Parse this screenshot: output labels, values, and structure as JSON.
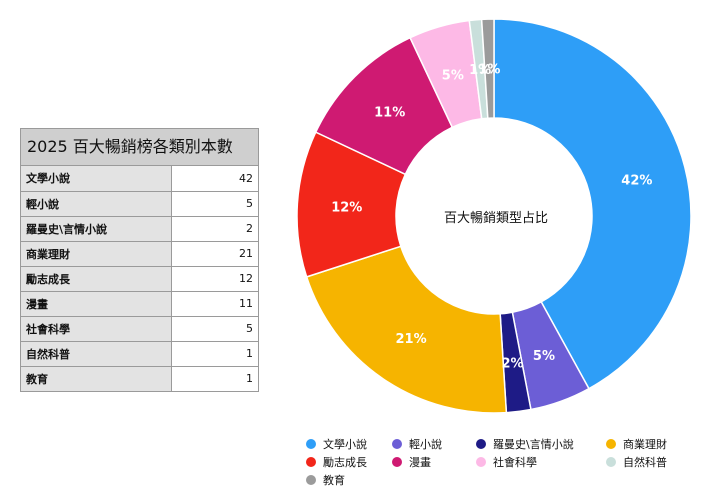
{
  "table": {
    "title": "2025 百大暢銷榜各類別本數",
    "rows": [
      {
        "category": "文學小說",
        "count": "42"
      },
      {
        "category": "輕小說",
        "count": "5"
      },
      {
        "category": "羅曼史\\言情小說",
        "count": "2"
      },
      {
        "category": "商業理財",
        "count": "21"
      },
      {
        "category": "勵志成長",
        "count": "12"
      },
      {
        "category": "漫畫",
        "count": "11"
      },
      {
        "category": "社會科學",
        "count": "5"
      },
      {
        "category": "自然科普",
        "count": "1"
      },
      {
        "category": "教育",
        "count": "1"
      }
    ]
  },
  "chart_data": {
    "type": "pie",
    "variant": "donut",
    "title": "百大暢銷類型占比",
    "categories": [
      "文學小說",
      "輕小說",
      "羅曼史\\言情小說",
      "商業理財",
      "勵志成長",
      "漫畫",
      "社會科學",
      "自然科普",
      "教育"
    ],
    "values": [
      42,
      5,
      2,
      21,
      12,
      11,
      5,
      1,
      1
    ],
    "data_labels": [
      "42%",
      "5%",
      "2%",
      "21%",
      "12%",
      "11%",
      "5%",
      "1%",
      "1%"
    ],
    "colors": [
      "#2e9ef7",
      "#6c5ed6",
      "#1e1b86",
      "#f6b400",
      "#f2261a",
      "#cf1a72",
      "#fdb9e6",
      "#c9dfdb",
      "#9b9b9b"
    ],
    "legend_position": "bottom"
  }
}
